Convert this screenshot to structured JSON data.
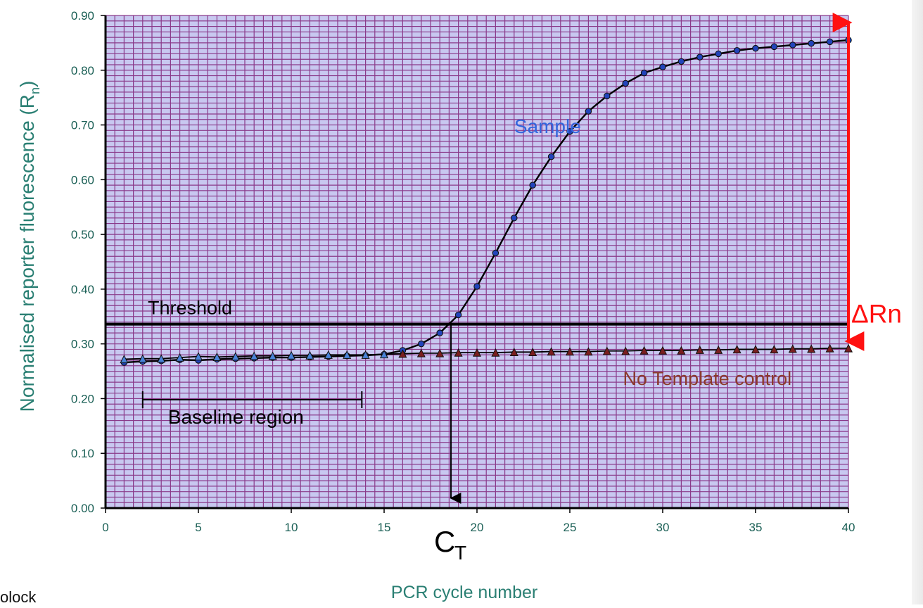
{
  "chart_data": {
    "type": "line",
    "title": "",
    "xlabel": "PCR cycle number",
    "ylabel_main": "Normalised reporter fluorescence (R",
    "ylabel_sub": "n",
    "ylabel_close": ")",
    "xlim": [
      0,
      40
    ],
    "ylim": [
      0,
      0.9
    ],
    "xticks": [
      0,
      5,
      10,
      15,
      20,
      25,
      30,
      35,
      40
    ],
    "xtick_labels": [
      "0",
      "5",
      "10",
      "15",
      "20",
      "25",
      "30",
      "35",
      "40"
    ],
    "yticks": [
      0,
      0.1,
      0.2,
      0.3,
      0.4,
      0.5,
      0.6,
      0.7,
      0.8,
      0.9
    ],
    "ytick_labels": [
      "0.00",
      "0.10",
      "0.20",
      "0.30",
      "0.40",
      "0.50",
      "0.60",
      "0.70",
      "0.80",
      "0.90"
    ],
    "grid": true,
    "colors": {
      "plot_background": "#c8c8f0",
      "grid": "#8a3a8a",
      "axis_label": "#2a7f73",
      "tick_label": "#1a5f55",
      "sample_marker": "#2244bb",
      "control_marker": "#7a1f1f",
      "sample_label": "#3366dd",
      "control_label": "#8b3a2a",
      "delta_rn": "#ff1111"
    },
    "series": [
      {
        "name": "Sample",
        "marker": "circle",
        "x": [
          1,
          2,
          3,
          4,
          5,
          6,
          7,
          8,
          9,
          10,
          11,
          12,
          13,
          14,
          15,
          16,
          17,
          18,
          19,
          20,
          21,
          22,
          23,
          24,
          25,
          26,
          27,
          28,
          29,
          30,
          31,
          32,
          33,
          34,
          35,
          36,
          37,
          38,
          39,
          40
        ],
        "values": [
          0.266,
          0.268,
          0.269,
          0.271,
          0.27,
          0.272,
          0.273,
          0.274,
          0.275,
          0.275,
          0.276,
          0.277,
          0.278,
          0.279,
          0.281,
          0.288,
          0.3,
          0.32,
          0.353,
          0.405,
          0.466,
          0.53,
          0.59,
          0.642,
          0.688,
          0.725,
          0.753,
          0.776,
          0.795,
          0.806,
          0.816,
          0.824,
          0.83,
          0.836,
          0.84,
          0.843,
          0.846,
          0.849,
          0.852,
          0.855
        ]
      },
      {
        "name": "No Template control",
        "marker": "triangle",
        "x": [
          1,
          2,
          3,
          4,
          5,
          6,
          7,
          8,
          9,
          10,
          11,
          12,
          13,
          14,
          15,
          16,
          17,
          18,
          19,
          20,
          21,
          22,
          23,
          24,
          25,
          26,
          27,
          28,
          29,
          30,
          31,
          32,
          33,
          34,
          35,
          36,
          37,
          38,
          39,
          40
        ],
        "values": [
          0.272,
          0.273,
          0.273,
          0.275,
          0.277,
          0.276,
          0.277,
          0.278,
          0.278,
          0.279,
          0.279,
          0.28,
          0.28,
          0.28,
          0.281,
          0.282,
          0.283,
          0.283,
          0.284,
          0.284,
          0.284,
          0.285,
          0.285,
          0.286,
          0.286,
          0.286,
          0.287,
          0.287,
          0.288,
          0.288,
          0.288,
          0.289,
          0.289,
          0.29,
          0.29,
          0.29,
          0.291,
          0.291,
          0.292,
          0.292
        ]
      }
    ],
    "threshold": {
      "label": "Threshold",
      "y": 0.336
    },
    "ct": {
      "label": "C",
      "subscript": "T",
      "x": 18.6
    },
    "baseline": {
      "label": "Baseline region",
      "x_start": 2,
      "x_end": 13.8,
      "y": 0.198
    },
    "delta_rn": {
      "label": "ΔRn",
      "x": 40,
      "y_from": 0.292,
      "y_to": 0.9
    },
    "annotations": {
      "sample": {
        "text": "Sample",
        "x": 23.8,
        "y": 0.685
      },
      "control": {
        "text": "No Template control",
        "x": 32.4,
        "y": 0.225
      }
    }
  },
  "page": {
    "cut_text": "olock"
  }
}
